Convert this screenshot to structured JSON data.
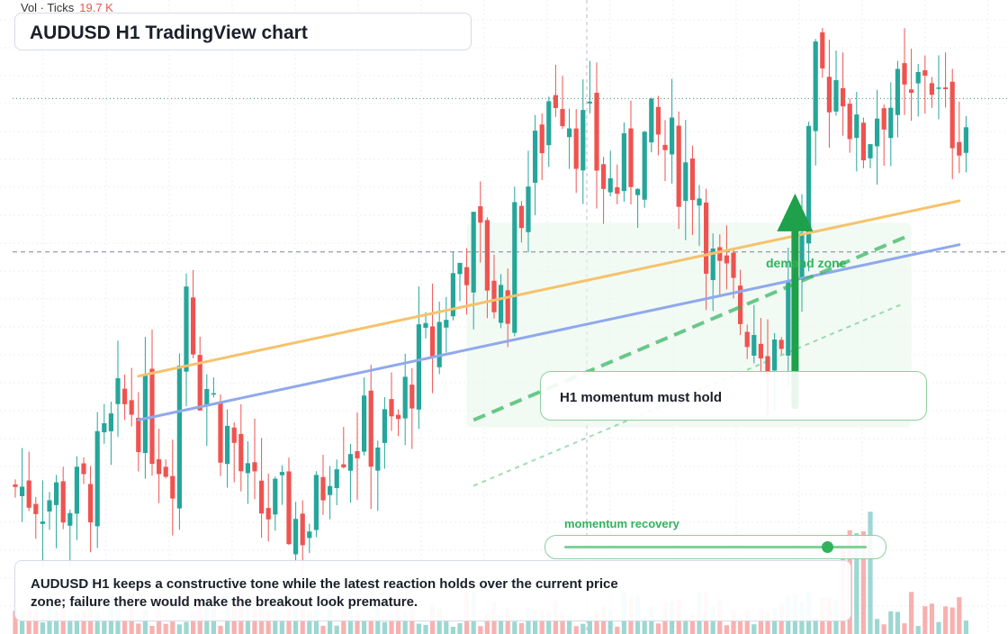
{
  "header": {
    "title": "AUDUSD H1 TradingView chart"
  },
  "volume_label": {
    "name": "Vol · Ticks",
    "value": "19.7 K"
  },
  "annotations": {
    "zone_label": "demand zone",
    "note": "H1 momentum must hold",
    "momentum_label": "momentum recovery",
    "caption": "AUDUSD H1 keeps a constructive tone while the latest reaction holds over the current price zone; failure there would make the breakout look premature."
  },
  "momentum_slider": {
    "level": 0.87
  },
  "colors": {
    "up": "#26a69a",
    "down": "#ef5350",
    "ma_fast": "#f6c26b",
    "ma_slow": "#8fa9ec",
    "accent": "#2fb35a"
  },
  "chart_data": {
    "type": "candlestick",
    "symbol": "AUDUSD",
    "timeframe": "H1",
    "candle_count": 140,
    "price_range": [
      0.65,
      0.657
    ],
    "swing_points": [
      [
        0,
        0.6505
      ],
      [
        10,
        0.6503
      ],
      [
        18,
        0.6516
      ],
      [
        24,
        0.6509
      ],
      [
        26,
        0.6534
      ],
      [
        28,
        0.652
      ],
      [
        32,
        0.6512
      ],
      [
        36,
        0.6502
      ],
      [
        44,
        0.65
      ],
      [
        48,
        0.6512
      ],
      [
        56,
        0.6512
      ],
      [
        60,
        0.6522
      ],
      [
        68,
        0.6538
      ],
      [
        72,
        0.653
      ],
      [
        76,
        0.6547
      ],
      [
        80,
        0.656
      ],
      [
        84,
        0.6553
      ],
      [
        88,
        0.6546
      ],
      [
        94,
        0.6552
      ],
      [
        100,
        0.6548
      ],
      [
        104,
        0.6532
      ],
      [
        108,
        0.6528
      ],
      [
        112,
        0.6525
      ],
      [
        116,
        0.6537
      ],
      [
        118,
        0.656
      ],
      [
        122,
        0.6561
      ],
      [
        124,
        0.6551
      ],
      [
        128,
        0.6558
      ],
      [
        132,
        0.6556
      ],
      [
        134,
        0.6563
      ],
      [
        137,
        0.6555
      ]
    ],
    "moving_averages": [
      {
        "color": "#f6c26b",
        "start": [
          18,
          0.652
        ],
        "end": [
          138,
          0.6544
        ]
      },
      {
        "color": "#8fa9ec",
        "start": [
          18,
          0.6514
        ],
        "end": [
          138,
          0.6538
        ]
      }
    ],
    "trend_lines": [
      {
        "style": "dashed",
        "start": [
          67,
          0.6514
        ],
        "end": [
          130,
          0.6539
        ]
      },
      {
        "style": "dotted",
        "start": [
          67,
          0.6505
        ],
        "end": [
          130,
          0.653
        ]
      }
    ],
    "horizontal_levels": [
      0.6558,
      0.6537
    ],
    "demand_zone": {
      "from_index": 66,
      "to_index": 131,
      "price_from": 0.6513,
      "price_to": 0.6541
    },
    "arrow": {
      "index": 114,
      "from_price": 0.6516,
      "to_price": 0.6545,
      "direction": "up"
    }
  }
}
